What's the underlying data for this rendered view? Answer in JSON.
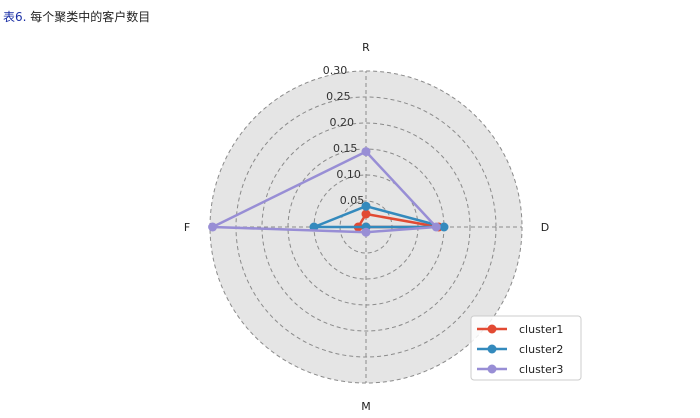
{
  "caption": {
    "tag": "表6.",
    "text": " 每个聚类中的客户数目"
  },
  "chart_data": {
    "type": "radar",
    "axes": [
      "R",
      "D",
      "M",
      "F"
    ],
    "radial_ticks": [
      "0.05",
      "0.10",
      "0.15",
      "0.20",
      "0.25",
      "0.30"
    ],
    "rlim": [
      0,
      0.3
    ],
    "grid": true,
    "legend_position": "bottom-right",
    "series": [
      {
        "name": "cluster1",
        "color": "#e24a33",
        "values": [
          0.025,
          0.14,
          0.0,
          0.015
        ]
      },
      {
        "name": "cluster2",
        "color": "#348abd",
        "values": [
          0.04,
          0.15,
          0.0,
          0.1
        ]
      },
      {
        "name": "cluster3",
        "color": "#988ed5",
        "values": [
          0.145,
          0.135,
          0.01,
          0.295
        ]
      }
    ]
  }
}
